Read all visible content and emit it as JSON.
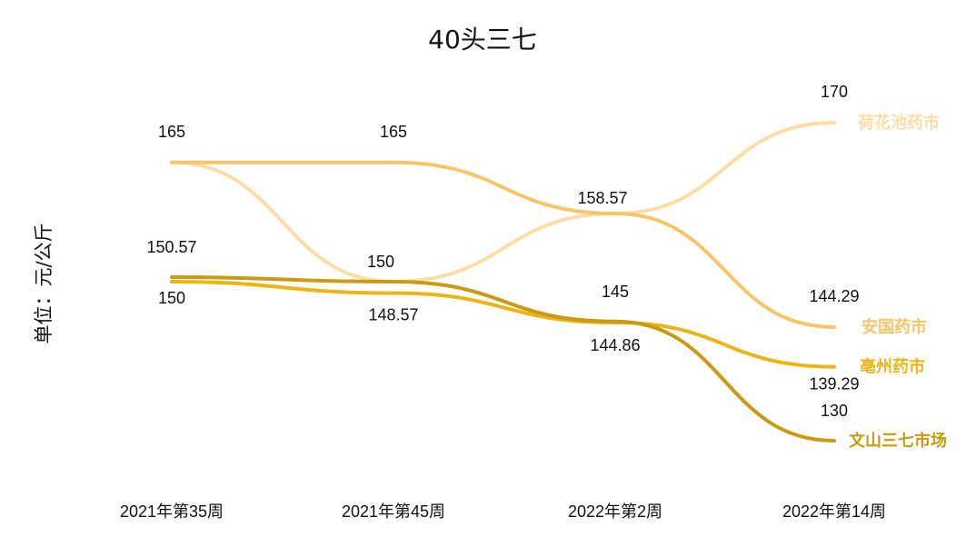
{
  "chart_data": {
    "type": "line",
    "title": "40头三七",
    "xlabel": "",
    "ylabel": "单位：元/公斤",
    "categories": [
      "2021年第35周",
      "2021年第45周",
      "2022年第2周",
      "2022年第14周"
    ],
    "ylim": [
      120,
      180
    ],
    "grid": false,
    "legend": "none",
    "series": [
      {
        "name": "荷花池药市",
        "values": [
          165,
          150,
          158.57,
          170
        ],
        "labels": [
          "165",
          "150",
          "158.57",
          "170"
        ],
        "color": "#FBDDA6"
      },
      {
        "name": "安国药市",
        "values": [
          165,
          165,
          158.57,
          144.29
        ],
        "labels": [
          "",
          "165",
          "",
          "144.29"
        ],
        "color": "#F7C56A"
      },
      {
        "name": "亳州药市",
        "values": [
          150,
          148.57,
          144.86,
          139.29
        ],
        "labels": [
          "150",
          "148.57",
          "144.86",
          "139.29"
        ],
        "color": "#EDB416"
      },
      {
        "name": "文山三七市场",
        "values": [
          150.57,
          150,
          145,
          130
        ],
        "labels": [
          "150.57",
          "",
          "145",
          "130"
        ],
        "color": "#C99A12"
      }
    ]
  }
}
